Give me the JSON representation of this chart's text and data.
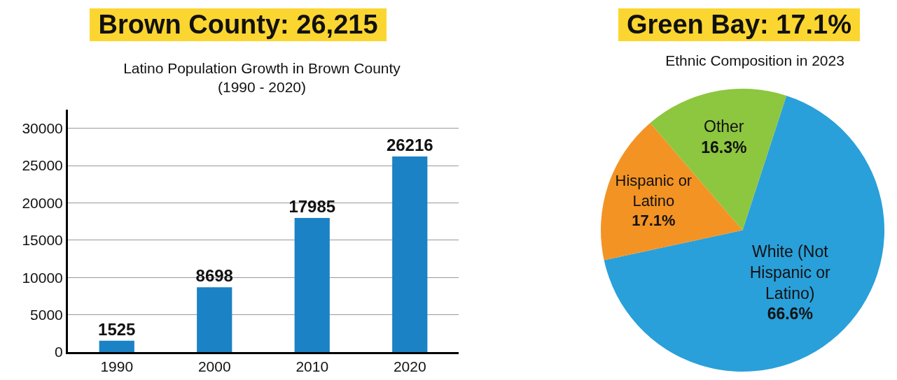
{
  "chart_data": [
    {
      "type": "bar",
      "title": "Brown County: 26,215",
      "subtitle": "Latino Population Growth in Brown County (1990 - 2020)",
      "categories": [
        "1990",
        "2000",
        "2010",
        "2020"
      ],
      "values": [
        1525,
        8698,
        17985,
        26216
      ],
      "color": "#1b82c5",
      "ylim": [
        0,
        32500
      ],
      "yticks": [
        0,
        5000,
        10000,
        15000,
        20000,
        25000,
        30000
      ],
      "grid": "y",
      "data_labels": true
    },
    {
      "type": "pie",
      "title": "Green Bay: 17.1%",
      "subtitle": "Ethnic Composition in 2023",
      "categories": [
        "White (Not Hispanic or Latino)",
        "Hispanic or Latino",
        "Other"
      ],
      "values": [
        66.6,
        17.1,
        16.3
      ],
      "colors": [
        "#29a0da",
        "#f39324",
        "#8dc63f"
      ],
      "value_labels": [
        "66.6%",
        "17.1%",
        "16.3%"
      ]
    }
  ]
}
